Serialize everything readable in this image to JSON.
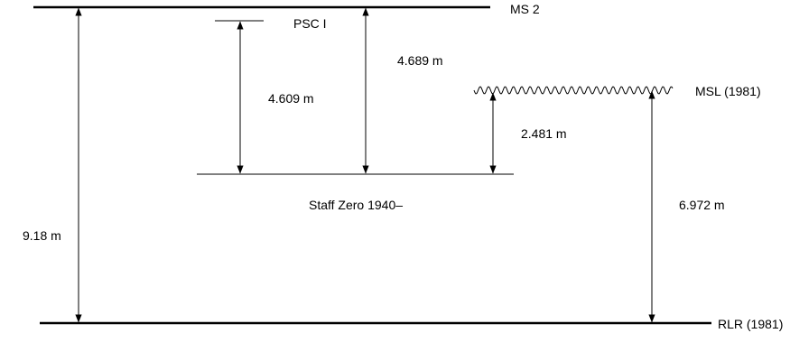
{
  "levels": {
    "ms2": {
      "label": "MS 2"
    },
    "psc": {
      "label": "PSC I"
    },
    "msl": {
      "label": "MSL (1981)"
    },
    "staff_zero": {
      "label": "Staff Zero 1940–"
    },
    "rlr": {
      "label": "RLR (1981)"
    }
  },
  "measurements": {
    "ms2_to_rlr": "9.18 m",
    "psc_to_staff_zero": "4.609 m",
    "ms2_to_staff_zero": "4.689 m",
    "msl_to_staff_zero": "2.481 m",
    "msl_to_rlr": "6.972 m"
  },
  "colors": {
    "line": "#000000",
    "background": "#ffffff"
  }
}
